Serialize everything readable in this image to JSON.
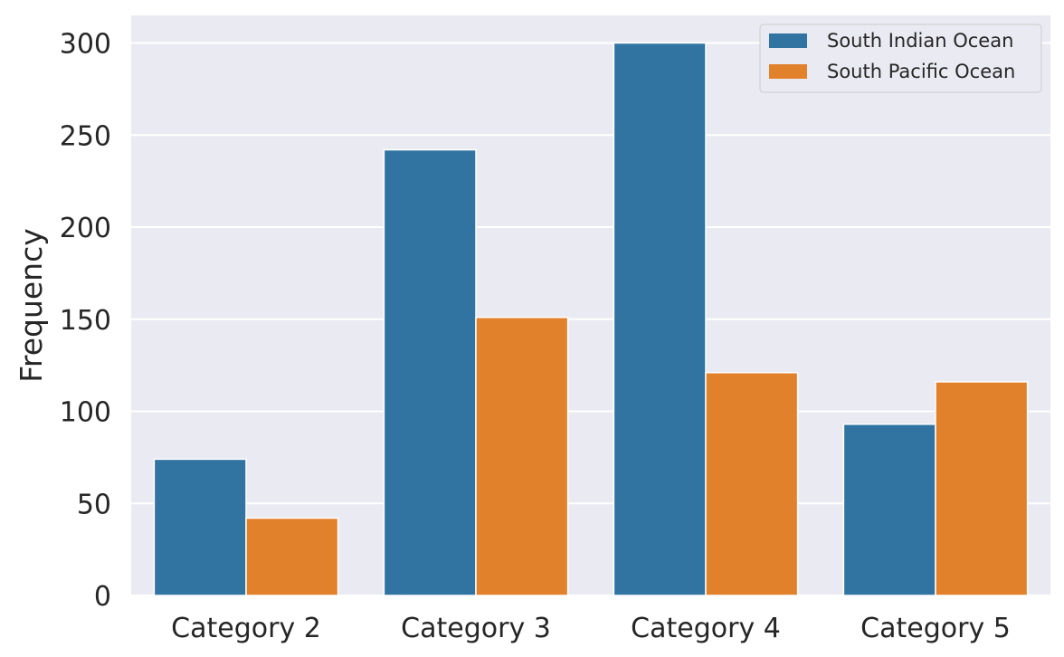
{
  "chart_data": {
    "type": "bar",
    "categories": [
      "Category 2",
      "Category 3",
      "Category 4",
      "Category 5"
    ],
    "series": [
      {
        "name": "South Indian Ocean",
        "color": "#3274a1",
        "values": [
          74,
          242,
          300,
          93
        ]
      },
      {
        "name": "South Pacific Ocean",
        "color": "#e1812c",
        "values": [
          42,
          151,
          121,
          116
        ]
      }
    ],
    "xlabel": "",
    "ylabel": "Frequency",
    "ylim": [
      0,
      315
    ],
    "yticks": [
      0,
      50,
      100,
      150,
      200,
      250,
      300
    ],
    "grid": true,
    "legend_position": "top-right",
    "style": {
      "background": "#eaeaf2",
      "grid_color": "#ffffff"
    }
  }
}
